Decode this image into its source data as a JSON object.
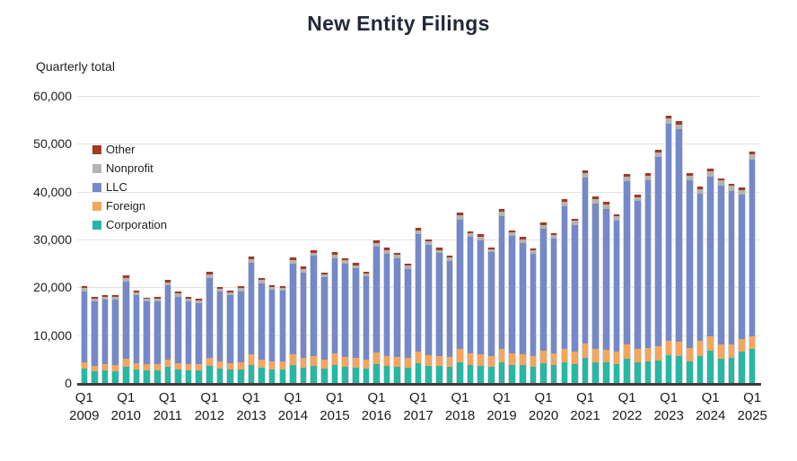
{
  "title": "New Entity Filings",
  "y_axis_title": "Quarterly total",
  "colors": {
    "corporation": "#26b8a5",
    "foreign": "#f5a55c",
    "llc": "#7489c9",
    "nonprofit": "#b3b3b3",
    "other": "#a13b22",
    "grid": "#e2e2e2",
    "axis": "#3d3d3d",
    "title_text": "#222838"
  },
  "chart_data": {
    "type": "bar",
    "stacked": true,
    "title": "New Entity Filings",
    "ylabel": "Quarterly total",
    "xlabel": "",
    "grid": "horizontal",
    "legend_position": "upper-left-inside",
    "ylim": [
      0,
      60000
    ],
    "yticks": [
      0,
      10000,
      20000,
      30000,
      40000,
      50000,
      60000
    ],
    "xticks": [
      {
        "line1": "Q1",
        "line2": "2009"
      },
      {
        "line1": "Q1",
        "line2": "2010"
      },
      {
        "line1": "Q1",
        "line2": "2011"
      },
      {
        "line1": "Q1",
        "line2": "2012"
      },
      {
        "line1": "Q1",
        "line2": "2013"
      },
      {
        "line1": "Q1",
        "line2": "2014"
      },
      {
        "line1": "Q1",
        "line2": "2015"
      },
      {
        "line1": "Q1",
        "line2": "2016"
      },
      {
        "line1": "Q1",
        "line2": "2017"
      },
      {
        "line1": "Q1",
        "line2": "2018"
      },
      {
        "line1": "Q1",
        "line2": "2019"
      },
      {
        "line1": "Q1",
        "line2": "2020"
      },
      {
        "line1": "Q1",
        "line2": "2021"
      },
      {
        "line1": "Q1",
        "line2": "2022"
      },
      {
        "line1": "Q1",
        "line2": "2023"
      },
      {
        "line1": "Q1",
        "line2": "2024"
      },
      {
        "line1": "Q1",
        "line2": "2025"
      }
    ],
    "categories": [
      "Q1 2009",
      "Q2 2009",
      "Q3 2009",
      "Q4 2009",
      "Q1 2010",
      "Q2 2010",
      "Q3 2010",
      "Q4 2010",
      "Q1 2011",
      "Q2 2011",
      "Q3 2011",
      "Q4 2011",
      "Q1 2012",
      "Q2 2012",
      "Q3 2012",
      "Q4 2012",
      "Q1 2013",
      "Q2 2013",
      "Q3 2013",
      "Q4 2013",
      "Q1 2014",
      "Q2 2014",
      "Q3 2014",
      "Q4 2014",
      "Q1 2015",
      "Q2 2015",
      "Q3 2015",
      "Q4 2015",
      "Q1 2016",
      "Q2 2016",
      "Q3 2016",
      "Q4 2016",
      "Q1 2017",
      "Q2 2017",
      "Q3 2017",
      "Q4 2017",
      "Q1 2018",
      "Q2 2018",
      "Q3 2018",
      "Q4 2018",
      "Q1 2019",
      "Q2 2019",
      "Q3 2019",
      "Q4 2019",
      "Q1 2020",
      "Q2 2020",
      "Q3 2020",
      "Q4 2020",
      "Q1 2021",
      "Q2 2021",
      "Q3 2021",
      "Q4 2021",
      "Q1 2022",
      "Q2 2022",
      "Q3 2022",
      "Q4 2022",
      "Q1 2023",
      "Q2 2023",
      "Q3 2023",
      "Q4 2023",
      "Q1 2024",
      "Q2 2024",
      "Q3 2024",
      "Q4 2024",
      "Q1 2025"
    ],
    "series": [
      {
        "name": "Corporation",
        "color": "#26b8a5",
        "values": [
          3000,
          2400,
          2600,
          2500,
          3400,
          2800,
          2600,
          2600,
          3300,
          2800,
          2700,
          2600,
          3500,
          3000,
          2800,
          2900,
          3800,
          3100,
          2900,
          2900,
          3800,
          3200,
          3500,
          3000,
          3800,
          3300,
          3200,
          3000,
          3900,
          3500,
          3400,
          3200,
          4100,
          3600,
          3500,
          3300,
          4300,
          3700,
          3600,
          3400,
          4400,
          3800,
          3700,
          3400,
          4200,
          3800,
          4400,
          4000,
          5200,
          4400,
          4300,
          4000,
          5000,
          4400,
          4500,
          4600,
          5900,
          5700,
          4500,
          5700,
          6800,
          5100,
          5300,
          6500,
          7200
        ]
      },
      {
        "name": "Foreign",
        "color": "#f5a55c",
        "values": [
          1400,
          1200,
          1300,
          1300,
          1600,
          1400,
          1300,
          1300,
          1500,
          1400,
          1300,
          1300,
          1700,
          1500,
          1400,
          1500,
          2200,
          1700,
          1600,
          1600,
          2200,
          2000,
          2100,
          1800,
          2300,
          2100,
          2000,
          1900,
          2400,
          2200,
          2100,
          2000,
          2500,
          2300,
          2200,
          2100,
          2800,
          2400,
          2400,
          2200,
          2800,
          2400,
          2300,
          2200,
          2500,
          2300,
          2800,
          2600,
          3000,
          2800,
          2700,
          2600,
          3000,
          2800,
          2900,
          3000,
          2900,
          2900,
          2800,
          3200,
          2900,
          3000,
          2800,
          2600,
          2600
        ]
      },
      {
        "name": "LLC",
        "color": "#7489c9",
        "values": [
          14800,
          13500,
          13600,
          13600,
          16200,
          14200,
          13100,
          13200,
          15600,
          13900,
          13100,
          12800,
          16750,
          14600,
          14200,
          14800,
          19200,
          16050,
          15000,
          14800,
          19000,
          17950,
          20950,
          17250,
          20000,
          19550,
          18750,
          17350,
          22150,
          21400,
          20550,
          18650,
          24500,
          22900,
          21450,
          20150,
          27050,
          24400,
          23900,
          21700,
          27650,
          24500,
          23300,
          21400,
          25500,
          24000,
          29800,
          26450,
          34700,
          30400,
          29400,
          27400,
          34100,
          30800,
          35000,
          39650,
          45400,
          44400,
          35100,
          30700,
          33500,
          33200,
          32100,
          30250,
          36900
        ]
      },
      {
        "name": "Nonprofit",
        "color": "#b3b3b3",
        "values": [
          600,
          550,
          550,
          550,
          700,
          600,
          550,
          550,
          650,
          600,
          550,
          550,
          700,
          600,
          600,
          650,
          750,
          650,
          600,
          600,
          750,
          700,
          700,
          650,
          750,
          700,
          700,
          650,
          800,
          750,
          700,
          650,
          850,
          750,
          700,
          650,
          900,
          750,
          750,
          700,
          900,
          750,
          750,
          700,
          850,
          750,
          900,
          800,
          1000,
          900,
          900,
          850,
          1000,
          900,
          950,
          1000,
          1100,
          1100,
          1000,
          1000,
          1100,
          1000,
          1000,
          1000,
          1200
        ]
      },
      {
        "name": "Other",
        "color": "#a13b22",
        "values": [
          400,
          350,
          350,
          350,
          700,
          400,
          350,
          350,
          550,
          400,
          350,
          350,
          550,
          400,
          400,
          450,
          550,
          400,
          400,
          400,
          550,
          450,
          450,
          400,
          550,
          450,
          450,
          400,
          550,
          450,
          450,
          400,
          550,
          450,
          450,
          400,
          550,
          450,
          450,
          400,
          550,
          450,
          450,
          400,
          550,
          450,
          500,
          450,
          600,
          500,
          500,
          450,
          600,
          500,
          550,
          550,
          600,
          600,
          500,
          500,
          600,
          500,
          500,
          450,
          500
        ]
      }
    ],
    "legend_order": [
      "Other",
      "Nonprofit",
      "LLC",
      "Foreign",
      "Corporation"
    ]
  }
}
